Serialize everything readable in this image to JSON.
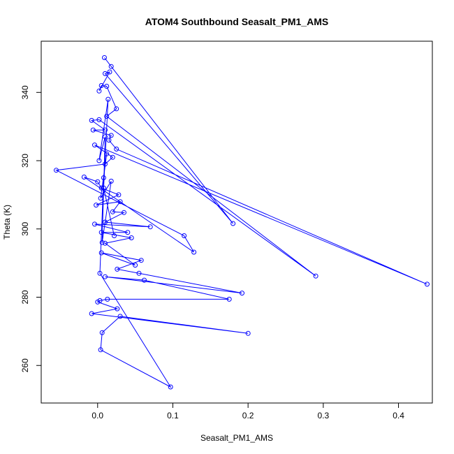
{
  "chart_data": {
    "type": "line",
    "title": "ATOM4 Southbound Seasalt_PM1_AMS",
    "xlabel": "Seasalt_PM1_AMS",
    "ylabel": "Theta (K)",
    "xlim": [
      -0.075,
      0.445
    ],
    "ylim": [
      249,
      355
    ],
    "xticks": [
      0.0,
      0.1,
      0.2,
      0.3,
      0.4
    ],
    "xtick_labels": [
      "0.0",
      "0.1",
      "0.2",
      "0.3",
      "0.4"
    ],
    "yticks": [
      260,
      280,
      300,
      320,
      340
    ],
    "ytick_labels": [
      "260",
      "280",
      "300",
      "320",
      "340"
    ],
    "grid": false,
    "series": [
      {
        "color": "#0000ff",
        "marker": "open-circle",
        "points": [
          [
            0.009,
            350.2
          ],
          [
            0.018,
            347.6
          ],
          [
            0.18,
            301.6
          ],
          [
            0.01,
            345.5
          ],
          [
            0.016,
            346.0
          ],
          [
            0.002,
            340.4
          ],
          [
            0.005,
            342.0
          ],
          [
            0.012,
            341.8
          ],
          [
            0.025,
            335.2
          ],
          [
            0.012,
            333.0
          ],
          [
            0.29,
            286.2
          ],
          [
            0.002,
            332.0
          ],
          [
            -0.008,
            331.8
          ],
          [
            0.01,
            329.0
          ],
          [
            -0.006,
            329.0
          ],
          [
            0.018,
            327.4
          ],
          [
            0.015,
            326.0
          ],
          [
            0.025,
            323.4
          ],
          [
            0.438,
            283.8
          ],
          [
            -0.004,
            324.6
          ],
          [
            0.02,
            321.0
          ],
          [
            0.01,
            319.0
          ],
          [
            -0.055,
            317.2
          ],
          [
            0.115,
            298.0
          ],
          [
            0.128,
            293.2
          ],
          [
            -0.018,
            315.2
          ],
          [
            0.0,
            313.8
          ],
          [
            0.005,
            312.0
          ],
          [
            0.028,
            310.0
          ],
          [
            -0.002,
            307.0
          ],
          [
            0.03,
            308.0
          ],
          [
            0.02,
            305.0
          ],
          [
            0.035,
            304.8
          ],
          [
            0.01,
            302.0
          ],
          [
            0.07,
            300.6
          ],
          [
            -0.004,
            301.4
          ],
          [
            0.04,
            299.0
          ],
          [
            0.005,
            299.0
          ],
          [
            0.045,
            297.4
          ],
          [
            0.01,
            295.8
          ],
          [
            0.05,
            289.4
          ],
          [
            0.005,
            293.0
          ],
          [
            0.058,
            290.8
          ],
          [
            0.026,
            288.2
          ],
          [
            0.055,
            287.0
          ],
          [
            0.192,
            281.2
          ],
          [
            0.01,
            286.0
          ],
          [
            0.062,
            285.0
          ],
          [
            0.175,
            279.4
          ],
          [
            0.013,
            279.4
          ],
          [
            0.003,
            279.0
          ],
          [
            0.0,
            278.6
          ],
          [
            0.026,
            276.6
          ],
          [
            -0.008,
            275.2
          ],
          [
            0.2,
            269.4
          ],
          [
            0.03,
            274.4
          ],
          [
            0.006,
            269.6
          ],
          [
            0.004,
            264.6
          ],
          [
            0.097,
            253.7
          ],
          [
            0.003,
            287.0
          ],
          [
            0.008,
            315.0
          ],
          [
            0.012,
            322.0
          ],
          [
            0.004,
            309.0
          ],
          [
            0.018,
            314.0
          ],
          [
            0.006,
            296.0
          ],
          [
            0.01,
            327.0
          ],
          [
            0.002,
            320.0
          ],
          [
            0.014,
            338.0
          ],
          [
            0.008,
            312.0
          ],
          [
            0.022,
            298.0
          ]
        ]
      }
    ]
  }
}
